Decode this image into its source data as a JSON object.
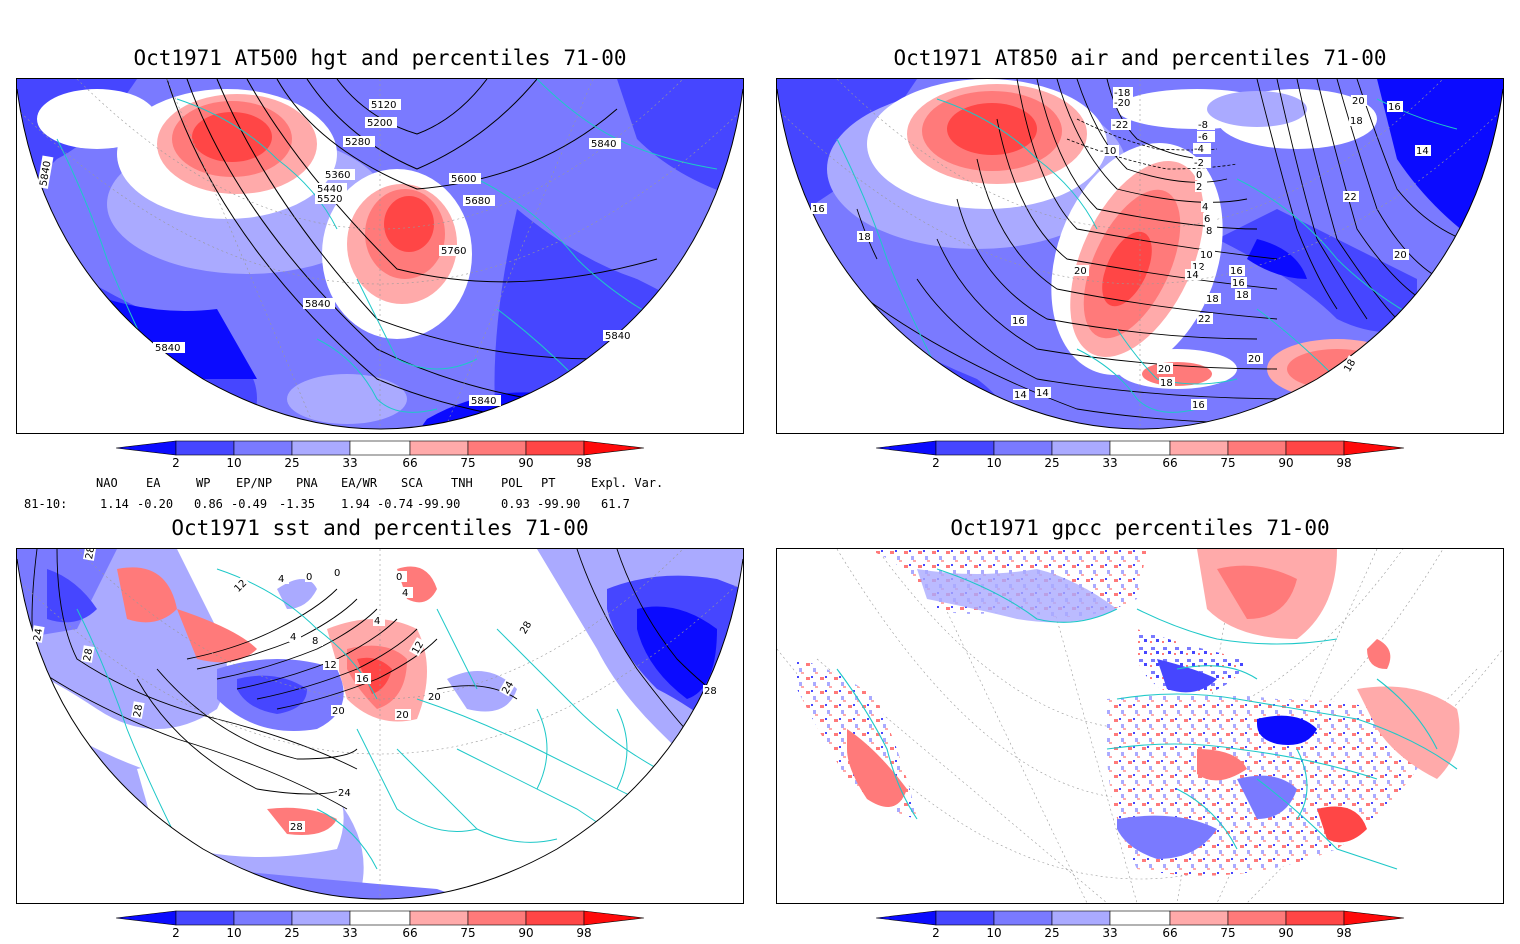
{
  "panels": [
    {
      "title": "Oct1971 AT500 hgt and percentiles 71-00",
      "contour_labels": [
        "5120",
        "5200",
        "5280",
        "5360",
        "5440",
        "5520",
        "5600",
        "5680",
        "5760",
        "5840",
        "5840",
        "5840",
        "5840",
        "5840",
        "5840"
      ]
    },
    {
      "title": "Oct1971 AT850 air and percentiles 71-00",
      "contour_labels": [
        "-18",
        "-20",
        "-22",
        "-10",
        "-8",
        "-6",
        "-4",
        "-2",
        "0",
        "2",
        "4",
        "6",
        "8",
        "10",
        "12",
        "14",
        "16",
        "18",
        "20",
        "22",
        "14",
        "16",
        "18",
        "20",
        "16",
        "14",
        "18",
        "16",
        "16",
        "18",
        "20",
        "22",
        "20",
        "18",
        "14",
        "16",
        "18",
        "20"
      ]
    },
    {
      "title": "Oct1971 sst and percentiles 71-00",
      "contour_labels": [
        "28",
        "24",
        "28",
        "28",
        "12",
        "4",
        "0",
        "0",
        "0",
        "4",
        "4",
        "4",
        "8",
        "12",
        "16",
        "20",
        "20",
        "20",
        "24",
        "28",
        "24",
        "12",
        "28"
      ]
    },
    {
      "title": "Oct1971 gpcc percentiles 71-00",
      "contour_labels": []
    }
  ],
  "colorbar": {
    "labels": [
      "2",
      "10",
      "25",
      "33",
      "66",
      "75",
      "90",
      "98"
    ],
    "colors": [
      "#0b0bff",
      "#4646ff",
      "#7a7aff",
      "#aaaaff",
      "#ffffff",
      "#ffaaaa",
      "#ff7a7a",
      "#ff4646",
      "#ff0b0b"
    ]
  },
  "indices": {
    "headers": [
      "NAO",
      "EA",
      "WP",
      "EP/NP",
      "PNA",
      "EA/WR",
      "SCA",
      "TNH",
      "POL",
      "PT",
      "Expl. Var."
    ],
    "row_label": "81-10:",
    "values": [
      "1.14",
      "-0.20",
      "0.86",
      "-0.49",
      "-1.35",
      "1.94",
      "-0.74",
      "-99.90",
      "0.93",
      "-99.90",
      "61.7"
    ]
  }
}
